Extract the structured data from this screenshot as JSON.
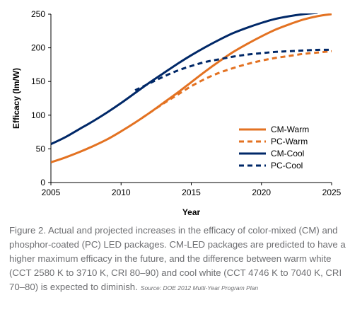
{
  "chart_data": {
    "type": "line",
    "xlabel": "Year",
    "ylabel": "Efficacy (lm/W)",
    "xlim": [
      2005,
      2025
    ],
    "ylim": [
      0,
      250
    ],
    "xticks": [
      2005,
      2010,
      2015,
      2020,
      2025
    ],
    "yticks": [
      0,
      50,
      100,
      150,
      200,
      250
    ],
    "grid": false,
    "legend_position": "lower-right",
    "series": [
      {
        "name": "CM-Warm",
        "color": "#e37222",
        "dash": "solid",
        "x": [
          2005,
          2006,
          2007,
          2008,
          2009,
          2010,
          2011,
          2012,
          2013,
          2014,
          2015,
          2016,
          2017,
          2018,
          2019,
          2020,
          2021,
          2022,
          2023,
          2024,
          2025
        ],
        "y": [
          30,
          37,
          45,
          54,
          64,
          76,
          89,
          103,
          118,
          133,
          149,
          165,
          180,
          194,
          206,
          217,
          227,
          235,
          242,
          247,
          250
        ]
      },
      {
        "name": "PC-Warm",
        "color": "#e37222",
        "dash": "dashed",
        "x": [
          2011.5,
          2012,
          2013,
          2014,
          2015,
          2016,
          2017,
          2018,
          2019,
          2020,
          2021,
          2022,
          2023,
          2024,
          2025
        ],
        "y": [
          96,
          103,
          117,
          130,
          143,
          154,
          163,
          170,
          176,
          181,
          185,
          188,
          191,
          193,
          195
        ]
      },
      {
        "name": "CM-Cool",
        "color": "#002868",
        "dash": "solid",
        "x": [
          2005,
          2006,
          2007,
          2008,
          2009,
          2010,
          2011,
          2012,
          2013,
          2014,
          2015,
          2016,
          2017,
          2018,
          2019,
          2020,
          2021,
          2022,
          2023,
          2024
        ],
        "y": [
          57,
          67,
          79,
          91,
          104,
          118,
          133,
          148,
          162,
          176,
          189,
          201,
          212,
          222,
          230,
          237,
          243,
          247,
          250,
          252
        ]
      },
      {
        "name": "PC-Cool",
        "color": "#002868",
        "dash": "dashed",
        "x": [
          2011,
          2012,
          2013,
          2014,
          2015,
          2016,
          2017,
          2018,
          2019,
          2020,
          2021,
          2022,
          2023,
          2024,
          2025
        ],
        "y": [
          137,
          147,
          157,
          166,
          173,
          179,
          183,
          187,
          190,
          192,
          194,
          195,
          196,
          197,
          197
        ]
      }
    ]
  },
  "caption": {
    "text": "Figure 2. Actual and projected increases in the efficacy of  color-mixed (CM) and phosphor-coated (PC) LED packages. CM-LED packages are predicted to have a higher maximum efficacy in the future, and the difference between warm white (CCT 2580 K to 3710 K, CRI 80–90) and cool white (CCT 4746 K to 7040 K, CRI 70–80) is expected to diminish.",
    "source": "Source: DOE 2012 Multi-Year Program Plan"
  }
}
